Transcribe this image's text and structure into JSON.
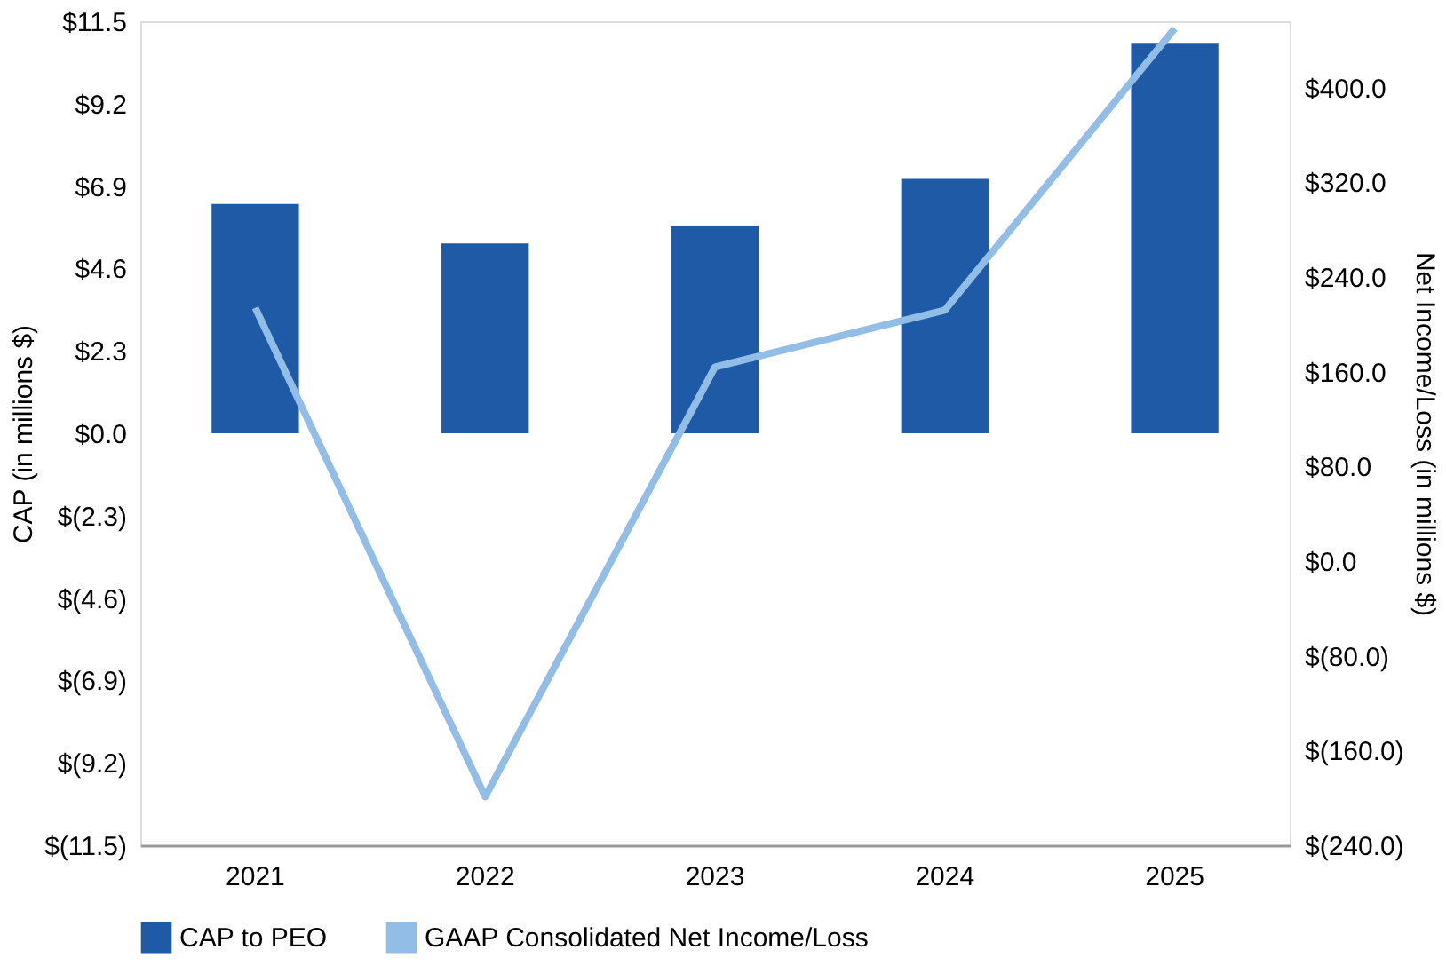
{
  "chart_data": {
    "type": "bar",
    "categories": [
      "2021",
      "2022",
      "2023",
      "2024",
      "2025"
    ],
    "ylabel": "CAP (in millions $)",
    "y2label": "Net Income/Loss (in millions $)",
    "ylim": [
      -11.5,
      11.5
    ],
    "yticks": [
      {
        "value": -11.5,
        "label": "$(11.5)"
      },
      {
        "value": -9.2,
        "label": "$(9.2)"
      },
      {
        "value": -6.9,
        "label": "$(6.9)"
      },
      {
        "value": -4.6,
        "label": "$(4.6)"
      },
      {
        "value": -2.3,
        "label": "$(2.3)"
      },
      {
        "value": 0,
        "label": "$0.0"
      },
      {
        "value": 2.3,
        "label": "$2.3"
      },
      {
        "value": 4.6,
        "label": "$4.6"
      },
      {
        "value": 6.9,
        "label": "$6.9"
      },
      {
        "value": 9.2,
        "label": "$9.2"
      },
      {
        "value": 11.5,
        "label": "$11.5"
      }
    ],
    "y2lim": [
      -240,
      456
    ],
    "y2ticks": [
      {
        "value": -240,
        "label": "$(240.0)"
      },
      {
        "value": -160,
        "label": "$(160.0)"
      },
      {
        "value": -80,
        "label": "$(80.0)"
      },
      {
        "value": 0,
        "label": "$0.0"
      },
      {
        "value": 80,
        "label": "$80.0"
      },
      {
        "value": 160,
        "label": "$160.0"
      },
      {
        "value": 240,
        "label": "$240.0"
      },
      {
        "value": 320,
        "label": "$320.0"
      },
      {
        "value": 400,
        "label": "$400.0"
      }
    ],
    "grid": false,
    "legend": "bottom",
    "series": [
      {
        "name": "CAP to PEO",
        "color": "#1f5aa6",
        "values": [
          6.4,
          5.3,
          5.8,
          7.1,
          10.9
        ]
      },
      {
        "name": "GAAP Consolidated Net Income/Loss",
        "type": "line",
        "axis": "y2",
        "color": "#92bde6",
        "values": [
          214,
          -199,
          164,
          212,
          450
        ]
      }
    ]
  }
}
